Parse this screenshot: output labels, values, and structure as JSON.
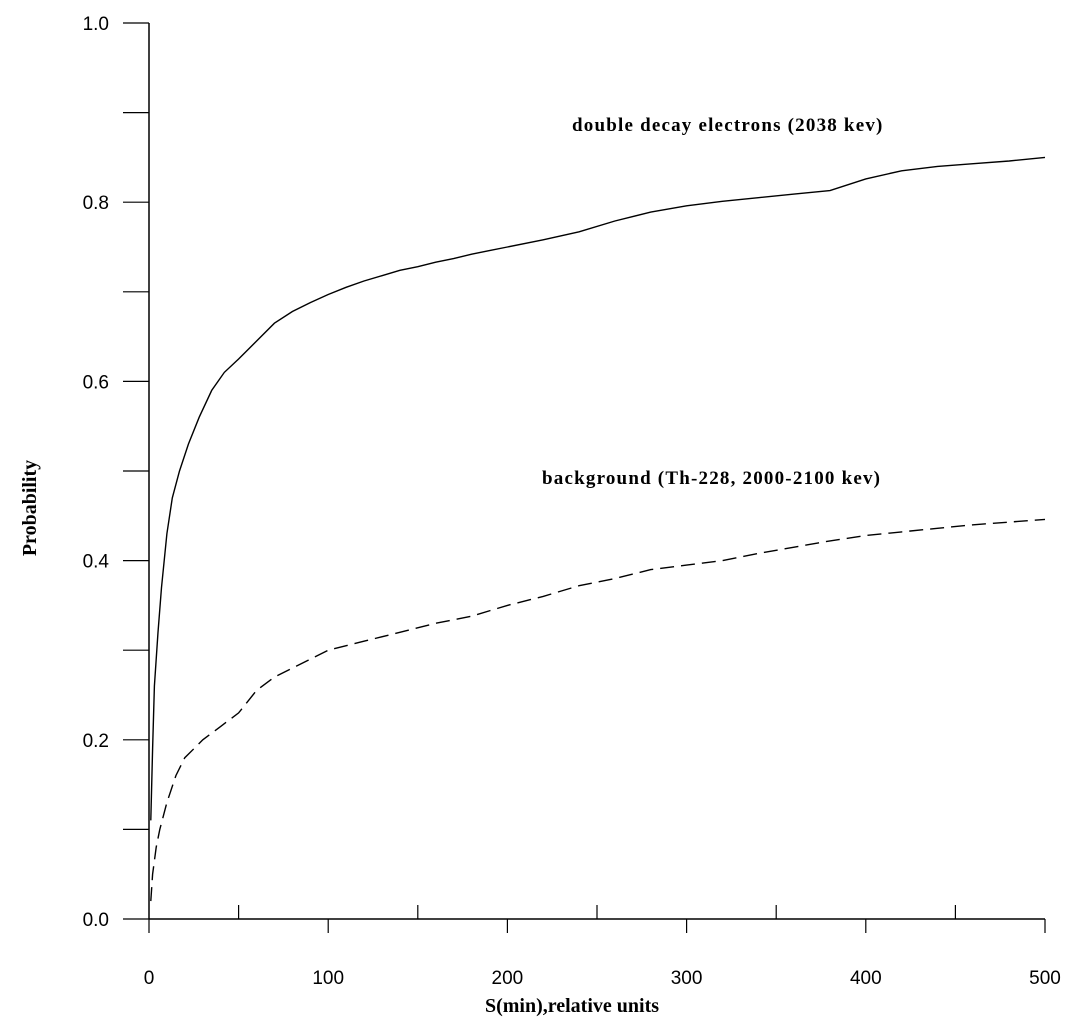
{
  "chart_data": {
    "type": "line",
    "xlabel": "S(min),relative units",
    "ylabel": "Probability",
    "xlim": [
      0,
      500
    ],
    "ylim": [
      0,
      1.0
    ],
    "x_ticks_major": [
      0,
      100,
      200,
      300,
      400,
      500
    ],
    "x_tick_labels": [
      "0",
      "100",
      "200",
      "300",
      "400",
      "500"
    ],
    "x_ticks_minor": [
      50,
      150,
      250,
      350,
      450
    ],
    "y_ticks_major": [
      0,
      0.2,
      0.4,
      0.6,
      0.8,
      1.0
    ],
    "y_tick_labels": [
      "0.0",
      "0.2",
      "0.4",
      "0.6",
      "0.8",
      "1.0"
    ],
    "y_ticks_minor": [
      0.1,
      0.3,
      0.5,
      0.7,
      0.9
    ],
    "grid": false,
    "legend": "inline annotations",
    "series": [
      {
        "name": "double decay electrons (2038 kev)",
        "style": "solid",
        "x": [
          1,
          2,
          3,
          5,
          7,
          10,
          13,
          17,
          22,
          28,
          35,
          42,
          50,
          60,
          70,
          80,
          90,
          100,
          110,
          120,
          130,
          140,
          150,
          160,
          170,
          180,
          190,
          200,
          220,
          240,
          260,
          280,
          300,
          320,
          340,
          360,
          380,
          400,
          420,
          440,
          460,
          480,
          500
        ],
        "y": [
          0.11,
          0.19,
          0.26,
          0.32,
          0.37,
          0.43,
          0.47,
          0.5,
          0.53,
          0.56,
          0.59,
          0.61,
          0.625,
          0.645,
          0.665,
          0.678,
          0.688,
          0.697,
          0.705,
          0.712,
          0.718,
          0.724,
          0.728,
          0.733,
          0.737,
          0.742,
          0.746,
          0.75,
          0.758,
          0.767,
          0.779,
          0.789,
          0.796,
          0.801,
          0.805,
          0.809,
          0.813,
          0.826,
          0.835,
          0.84,
          0.843,
          0.846,
          0.85
        ]
      },
      {
        "name": "background (Th-228, 2000-2100 kev)",
        "style": "dashed",
        "x": [
          1,
          2,
          4,
          6,
          10,
          15,
          20,
          25,
          30,
          40,
          50,
          60,
          70,
          80,
          90,
          100,
          120,
          140,
          160,
          180,
          200,
          220,
          240,
          260,
          280,
          300,
          320,
          340,
          360,
          380,
          400,
          420,
          440,
          460,
          480,
          500
        ],
        "y": [
          0.02,
          0.05,
          0.08,
          0.1,
          0.13,
          0.16,
          0.18,
          0.19,
          0.2,
          0.215,
          0.23,
          0.255,
          0.27,
          0.28,
          0.29,
          0.3,
          0.31,
          0.32,
          0.33,
          0.338,
          0.35,
          0.36,
          0.372,
          0.38,
          0.39,
          0.395,
          0.4,
          0.408,
          0.415,
          0.422,
          0.428,
          0.432,
          0.436,
          0.44,
          0.443,
          0.446
        ]
      }
    ]
  }
}
